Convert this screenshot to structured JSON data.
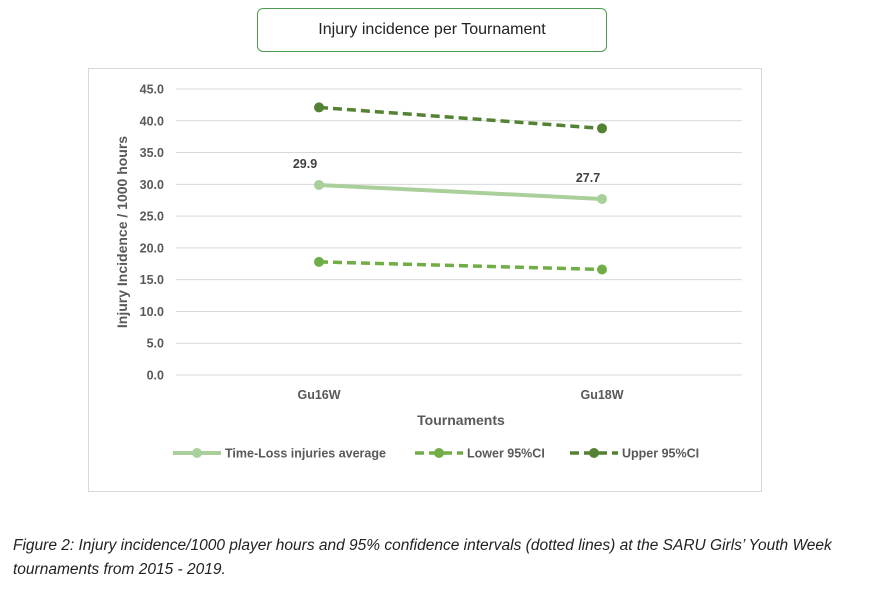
{
  "chart_data": {
    "type": "line",
    "title": "Injury incidence per Tournament",
    "xlabel": "Tournaments",
    "ylabel": "Injury Incidence / 1000 hours",
    "categories": [
      "Gu16W",
      "Gu18W"
    ],
    "ylim": [
      0,
      45
    ],
    "yticks": [
      "0.0",
      "5.0",
      "10.0",
      "15.0",
      "20.0",
      "25.0",
      "30.0",
      "35.0",
      "40.0",
      "45.0"
    ],
    "grid": true,
    "legend_position": "bottom",
    "series": [
      {
        "name": "Time-Loss injuries average",
        "values": [
          29.9,
          27.7
        ],
        "labels": [
          "29.9",
          "27.7"
        ],
        "color": "#a9cf9a",
        "dashed": false
      },
      {
        "name": "Lower 95%CI",
        "values": [
          17.8,
          16.6
        ],
        "color": "#70ad47",
        "dashed": true
      },
      {
        "name": "Upper 95%CI",
        "values": [
          42.1,
          38.8
        ],
        "color": "#548235",
        "dashed": true
      }
    ]
  },
  "caption": {
    "lead": "Figure 2:",
    "text": " Injury incidence/1000 player hours and 95% confidence intervals (dotted lines) at the SARU Girls’ Youth Week tournaments from 2015 - 2019."
  }
}
